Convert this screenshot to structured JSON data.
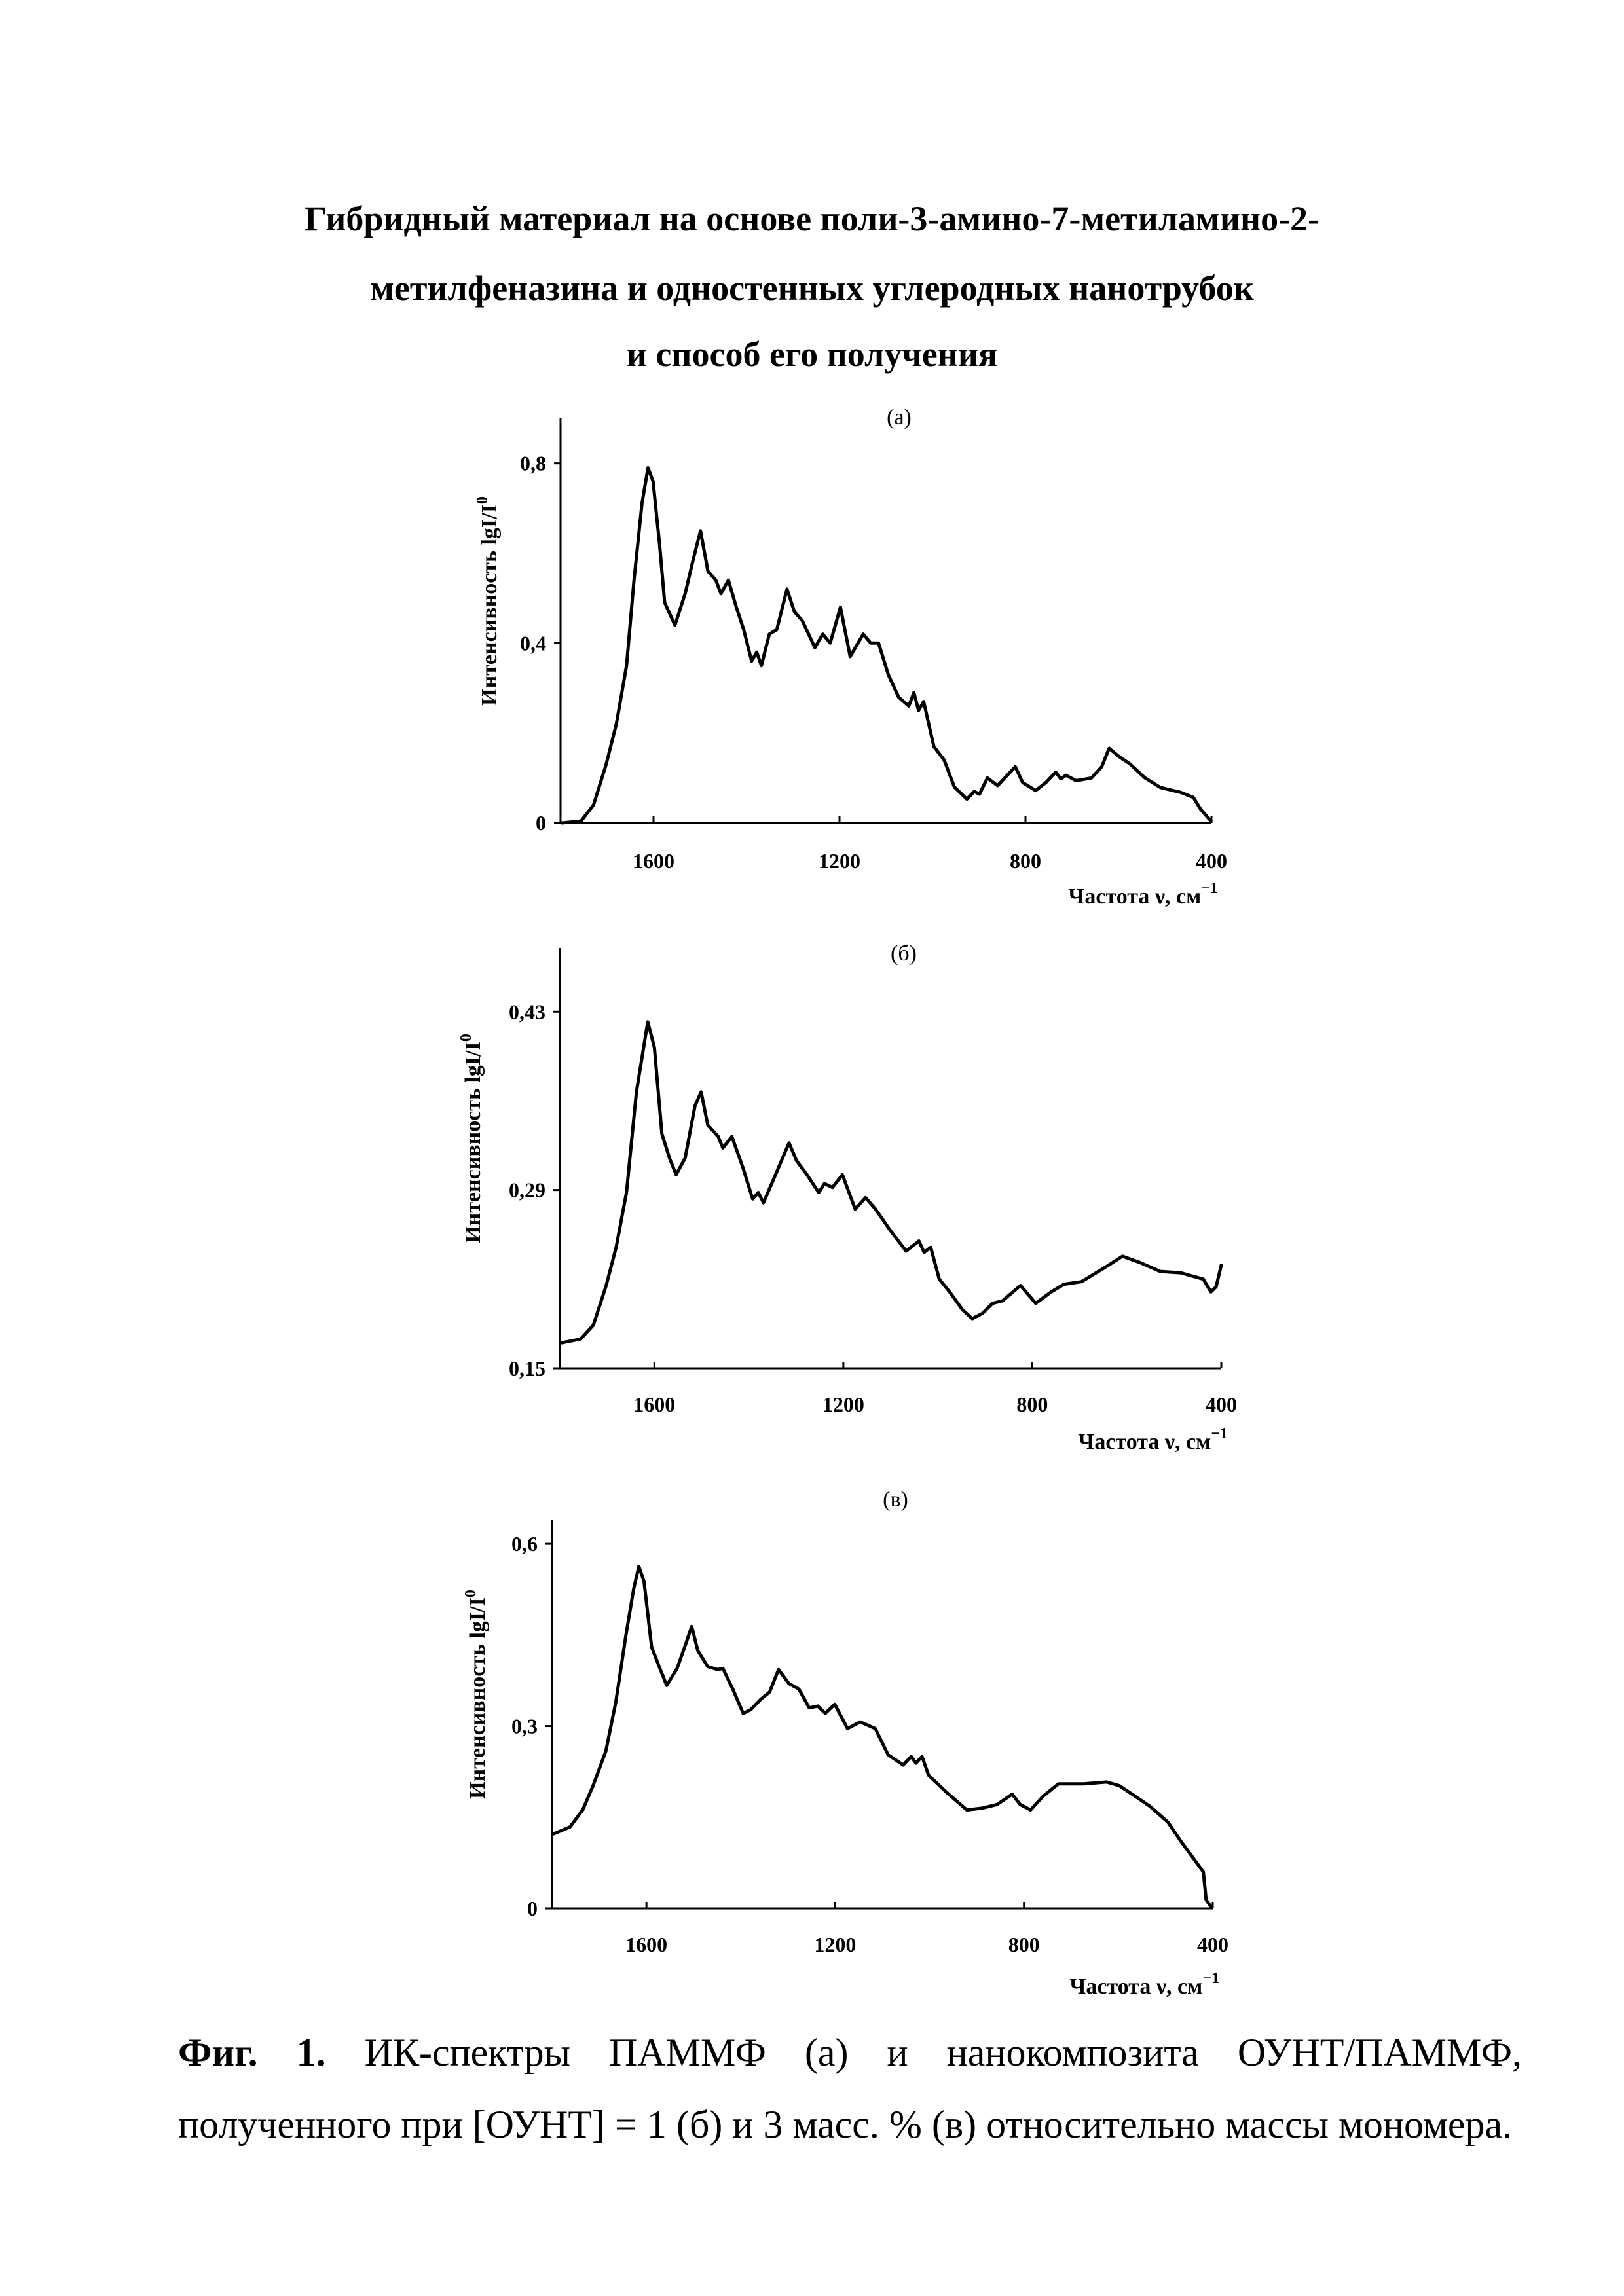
{
  "title": {
    "line1": "Гибридный материал на основе поли-3-амино-7-метиламино-2-",
    "line2": "метилфеназина и одностенных углеродных нанотрубок",
    "line3": "и способ его получения"
  },
  "caption": {
    "label": "Фиг. 1.",
    "line1": "ИК-спектры ПАММФ (а) и нанокомпозита ОУНТ/ПАММФ,",
    "line2": "полученного при [ОУНТ] = 1 (б) и 3 масс. % (в) относительно массы мономера."
  },
  "colors": {
    "line": "#000000",
    "background": "#ffffff"
  },
  "chart_data": [
    {
      "type": "line",
      "panel_label": "(а)",
      "xlabel": "Частота ν, см",
      "xlabel_sup": "−1",
      "ylabel": "Интенсивность lgI/I",
      "ylabel_sup": "0",
      "xlim": [
        1800,
        400
      ],
      "ylim": [
        0,
        0.9
      ],
      "xticks": [
        1600,
        1200,
        800,
        400
      ],
      "xtick_labels": [
        "1600",
        "1200",
        "800",
        "400"
      ],
      "yticks": [
        0,
        0.4,
        0.8
      ],
      "ytick_labels": [
        "0",
        "0,4",
        "0,8"
      ],
      "grid": false,
      "x": [
        1797,
        1756,
        1729,
        1702,
        1680,
        1658,
        1642,
        1625,
        1612,
        1601,
        1587,
        1576,
        1554,
        1532,
        1516,
        1499,
        1483,
        1466,
        1455,
        1439,
        1422,
        1406,
        1389,
        1378,
        1368,
        1351,
        1335,
        1313,
        1297,
        1280,
        1253,
        1236,
        1220,
        1198,
        1177,
        1149,
        1133,
        1116,
        1095,
        1073,
        1051,
        1040,
        1030,
        1019,
        997,
        975,
        953,
        926,
        910,
        899,
        882,
        860,
        822,
        806,
        778,
        756,
        735,
        724,
        713,
        691,
        658,
        636,
        620,
        598,
        576,
        543,
        510,
        466,
        439,
        423,
        401
      ],
      "y": [
        0,
        0.004,
        0.04,
        0.13,
        0.22,
        0.35,
        0.54,
        0.71,
        0.79,
        0.76,
        0.62,
        0.49,
        0.44,
        0.51,
        0.58,
        0.65,
        0.56,
        0.54,
        0.51,
        0.54,
        0.48,
        0.43,
        0.36,
        0.38,
        0.35,
        0.42,
        0.43,
        0.52,
        0.47,
        0.45,
        0.39,
        0.42,
        0.4,
        0.48,
        0.37,
        0.42,
        0.4,
        0.4,
        0.33,
        0.28,
        0.26,
        0.29,
        0.25,
        0.27,
        0.17,
        0.14,
        0.08,
        0.053,
        0.07,
        0.064,
        0.1,
        0.083,
        0.125,
        0.09,
        0.072,
        0.09,
        0.113,
        0.098,
        0.106,
        0.094,
        0.1,
        0.125,
        0.166,
        0.147,
        0.132,
        0.1,
        0.079,
        0.068,
        0.057,
        0.03,
        0.004
      ]
    },
    {
      "type": "line",
      "panel_label": "(б)",
      "xlabel": "Частота ν, см",
      "xlabel_sup": "−1",
      "ylabel": "Интенсивность lgI/I",
      "ylabel_sup": "0",
      "xlim": [
        1800,
        400
      ],
      "ylim": [
        0.15,
        0.48
      ],
      "xticks": [
        1600,
        1200,
        800,
        400
      ],
      "xtick_labels": [
        "1600",
        "1200",
        "800",
        "400"
      ],
      "yticks": [
        0.15,
        0.29,
        0.43
      ],
      "ytick_labels": [
        "0,15",
        "0,29",
        "0,43"
      ],
      "grid": false,
      "x": [
        1796,
        1756,
        1729,
        1702,
        1681,
        1659,
        1638,
        1614,
        1600,
        1584,
        1568,
        1554,
        1535,
        1514,
        1501,
        1487,
        1465,
        1455,
        1436,
        1412,
        1392,
        1380,
        1369,
        1347,
        1315,
        1299,
        1277,
        1252,
        1240,
        1223,
        1202,
        1175,
        1153,
        1132,
        1100,
        1067,
        1040,
        1029,
        1015,
        997,
        975,
        948,
        927,
        906,
        884,
        863,
        825,
        793,
        760,
        733,
        696,
        647,
        609,
        572,
        529,
        486,
        438,
        422,
        411,
        400
      ],
      "y": [
        0.17,
        0.173,
        0.184,
        0.215,
        0.245,
        0.288,
        0.367,
        0.422,
        0.402,
        0.334,
        0.315,
        0.302,
        0.315,
        0.356,
        0.367,
        0.341,
        0.332,
        0.323,
        0.332,
        0.307,
        0.283,
        0.288,
        0.28,
        0.299,
        0.327,
        0.313,
        0.302,
        0.288,
        0.295,
        0.292,
        0.302,
        0.275,
        0.284,
        0.275,
        0.258,
        0.242,
        0.25,
        0.241,
        0.245,
        0.22,
        0.21,
        0.196,
        0.189,
        0.193,
        0.201,
        0.203,
        0.215,
        0.201,
        0.21,
        0.216,
        0.218,
        0.229,
        0.238,
        0.233,
        0.226,
        0.225,
        0.22,
        0.21,
        0.214,
        0.231
      ]
    },
    {
      "type": "line",
      "panel_label": "(в)",
      "xlabel": "Частота ν, см",
      "xlabel_sup": "−1",
      "ylabel": "Интенсивность lgI/I",
      "ylabel_sup": "0",
      "xlim": [
        1800,
        400
      ],
      "ylim": [
        0,
        0.64
      ],
      "xticks": [
        1600,
        1200,
        800,
        400
      ],
      "xtick_labels": [
        "1600",
        "1200",
        "800",
        "400"
      ],
      "yticks": [
        0,
        0.3,
        0.6
      ],
      "ytick_labels": [
        "0",
        "0,3",
        "0,6"
      ],
      "grid": false,
      "x": [
        1799,
        1762,
        1735,
        1713,
        1686,
        1665,
        1643,
        1627,
        1616,
        1605,
        1589,
        1573,
        1557,
        1535,
        1519,
        1504,
        1491,
        1470,
        1449,
        1438,
        1417,
        1395,
        1379,
        1358,
        1339,
        1320,
        1298,
        1277,
        1255,
        1237,
        1221,
        1201,
        1174,
        1147,
        1115,
        1088,
        1056,
        1039,
        1029,
        1016,
        1002,
        964,
        921,
        889,
        857,
        825,
        808,
        786,
        759,
        727,
        673,
        625,
        598,
        565,
        533,
        495,
        468,
        436,
        420,
        414,
        404
      ],
      "y": [
        0.122,
        0.134,
        0.162,
        0.202,
        0.259,
        0.339,
        0.452,
        0.526,
        0.563,
        0.538,
        0.43,
        0.398,
        0.367,
        0.395,
        0.43,
        0.464,
        0.424,
        0.398,
        0.393,
        0.395,
        0.361,
        0.321,
        0.327,
        0.344,
        0.356,
        0.393,
        0.37,
        0.361,
        0.33,
        0.333,
        0.321,
        0.336,
        0.296,
        0.307,
        0.296,
        0.253,
        0.236,
        0.25,
        0.239,
        0.25,
        0.219,
        0.191,
        0.162,
        0.165,
        0.171,
        0.188,
        0.171,
        0.162,
        0.185,
        0.205,
        0.205,
        0.208,
        0.202,
        0.185,
        0.168,
        0.142,
        0.111,
        0.077,
        0.06,
        0.014,
        0.003
      ]
    }
  ]
}
